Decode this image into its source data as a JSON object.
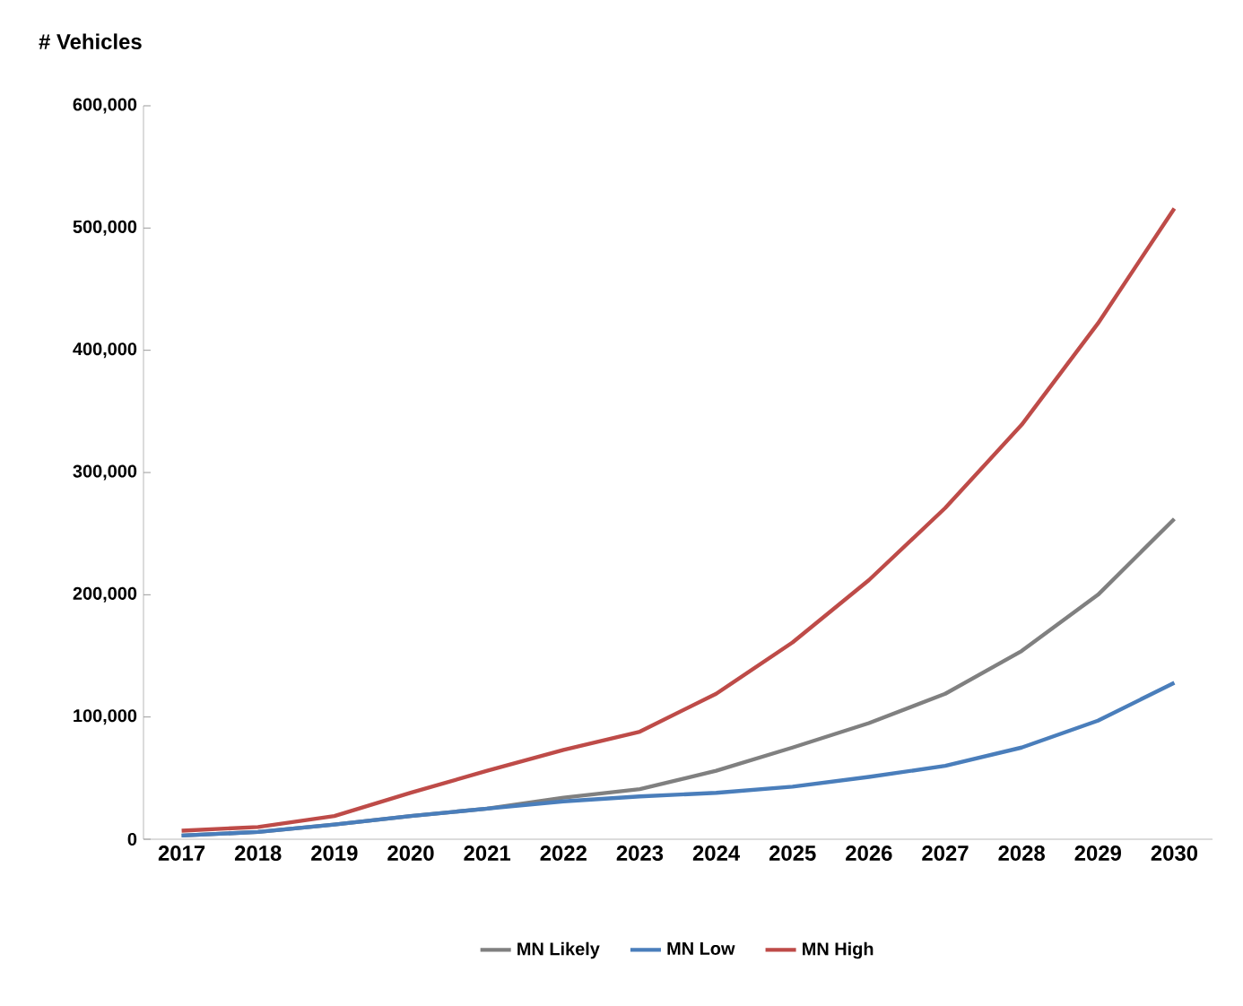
{
  "chart_data": {
    "type": "line",
    "ylabel": "# Vehicles",
    "categories": [
      "2017",
      "2018",
      "2019",
      "2020",
      "2021",
      "2022",
      "2023",
      "2024",
      "2025",
      "2026",
      "2027",
      "2028",
      "2029",
      "2030"
    ],
    "series": [
      {
        "name": "MN Likely",
        "color": "#808080",
        "values": [
          3000,
          6000,
          12000,
          19000,
          25000,
          34000,
          41000,
          56000,
          75000,
          95000,
          119000,
          154000,
          200000,
          262000
        ]
      },
      {
        "name": "MN Low",
        "color": "#4a7ebb",
        "values": [
          3000,
          6000,
          12000,
          19000,
          25000,
          31000,
          35000,
          38000,
          43000,
          51000,
          60000,
          75000,
          97000,
          128000
        ]
      },
      {
        "name": "MN High",
        "color": "#be4b48",
        "values": [
          7000,
          10000,
          19000,
          38000,
          56000,
          73000,
          88000,
          119000,
          161000,
          212000,
          271000,
          339000,
          422000,
          516000
        ]
      }
    ],
    "ylim": [
      0,
      600000
    ],
    "yticks": [
      {
        "value": 0,
        "label": "0"
      },
      {
        "value": 100000,
        "label": "100,000"
      },
      {
        "value": 200000,
        "label": "200,000"
      },
      {
        "value": 300000,
        "label": "300,000"
      },
      {
        "value": 400000,
        "label": "400,000"
      },
      {
        "value": 500000,
        "label": "500,000"
      },
      {
        "value": 600000,
        "label": "600,000"
      }
    ],
    "grid": false,
    "legend": "bottom",
    "marker": "none",
    "line_style": "solid"
  }
}
